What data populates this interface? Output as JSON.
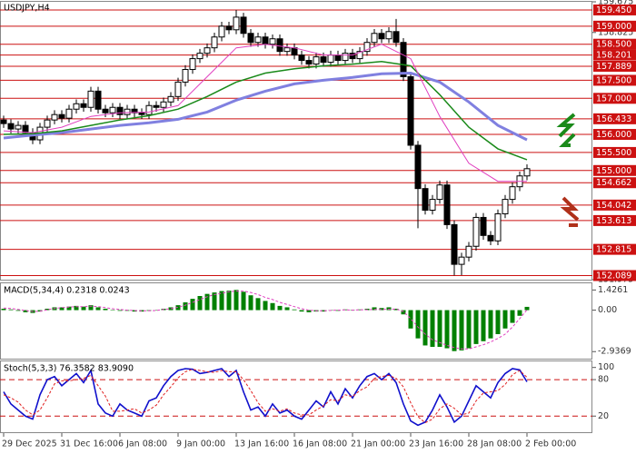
{
  "chart_data": [
    {
      "type": "candlestick",
      "title": "USDJPY,H4",
      "categories": [
        "29 Dec 2025",
        null,
        null,
        null,
        null,
        null,
        null,
        null,
        "31 Dec 16:00",
        null,
        null,
        null,
        null,
        null,
        null,
        null,
        "6 Jan 08:00",
        null,
        null,
        null,
        null,
        null,
        null,
        null,
        "9 Jan 00:00",
        null,
        null,
        null,
        null,
        null,
        null,
        null,
        "13 Jan 16:00",
        null,
        null,
        null,
        null,
        null,
        null,
        null,
        "16 Jan 08:00",
        null,
        null,
        null,
        null,
        null,
        null,
        null,
        "21 Jan 00:00",
        null,
        null,
        null,
        null,
        null,
        null,
        null,
        "23 Jan 16:00",
        null,
        null,
        null,
        null,
        null,
        null,
        null,
        "28 Jan 08:00",
        null,
        null,
        null,
        null,
        null,
        null,
        null,
        "2 Feb 00:00"
      ],
      "open": [
        156.4,
        156.3,
        156.15,
        156.25,
        156.05,
        155.85,
        156.2,
        156.4,
        156.55,
        156.45,
        156.7,
        156.85,
        156.75,
        157.2,
        156.7,
        156.6,
        156.75,
        156.55,
        156.7,
        156.6,
        156.55,
        156.8,
        156.75,
        156.9,
        157.05,
        157.45,
        157.8,
        158.1,
        158.25,
        158.4,
        158.7,
        159.0,
        158.9,
        159.25,
        158.8,
        158.55,
        158.7,
        158.5,
        158.65,
        158.3,
        158.4,
        158.2,
        158.05,
        157.95,
        158.15,
        158.0,
        158.2,
        158.05,
        158.25,
        158.1,
        158.3,
        158.55,
        158.8,
        158.65,
        158.85,
        158.55,
        157.6,
        155.7,
        154.5,
        153.9,
        154.2,
        154.6,
        153.5,
        152.4,
        152.6,
        152.9,
        153.7,
        153.2,
        153.05,
        153.8,
        154.2,
        154.55,
        154.85
      ],
      "high": [
        156.52,
        156.42,
        156.37,
        156.37,
        156.17,
        156.32,
        156.52,
        156.67,
        156.67,
        156.82,
        156.97,
        156.97,
        157.32,
        157.32,
        156.82,
        156.87,
        156.87,
        156.82,
        156.82,
        156.72,
        156.92,
        156.92,
        157.02,
        157.17,
        157.57,
        157.92,
        158.22,
        158.37,
        158.52,
        158.82,
        159.12,
        159.12,
        159.45,
        159.37,
        158.92,
        158.82,
        158.82,
        158.77,
        158.77,
        158.52,
        158.52,
        158.32,
        158.17,
        158.27,
        158.27,
        158.32,
        158.32,
        158.37,
        158.37,
        158.42,
        158.67,
        158.92,
        158.92,
        158.97,
        159.2,
        158.67,
        157.72,
        155.82,
        154.62,
        154.32,
        154.72,
        154.72,
        153.62,
        152.72,
        153.02,
        153.82,
        153.82,
        153.32,
        153.92,
        154.32,
        154.67,
        154.97,
        155.17
      ],
      "low": [
        156.18,
        156.03,
        156.03,
        155.93,
        155.73,
        155.73,
        156.08,
        156.28,
        156.33,
        156.33,
        156.58,
        156.63,
        156.63,
        156.58,
        156.48,
        156.48,
        156.43,
        156.43,
        156.48,
        156.43,
        156.43,
        156.63,
        156.63,
        156.78,
        156.93,
        157.33,
        157.68,
        157.98,
        158.13,
        158.28,
        158.58,
        158.78,
        158.78,
        158.68,
        158.43,
        158.43,
        158.38,
        158.38,
        158.18,
        158.18,
        158.08,
        157.93,
        157.83,
        157.83,
        157.88,
        157.88,
        157.93,
        157.93,
        157.98,
        157.98,
        158.18,
        158.43,
        158.53,
        158.53,
        158.43,
        157.48,
        155.58,
        153.4,
        153.78,
        153.78,
        154.08,
        153.38,
        152.09,
        152.1,
        152.48,
        152.78,
        153.08,
        152.93,
        152.93,
        153.68,
        154.08,
        154.43,
        154.73
      ],
      "close": [
        156.3,
        156.15,
        156.25,
        156.05,
        155.85,
        156.2,
        156.4,
        156.55,
        156.45,
        156.7,
        156.85,
        156.75,
        157.2,
        156.7,
        156.6,
        156.75,
        156.55,
        156.7,
        156.6,
        156.55,
        156.8,
        156.75,
        156.9,
        157.05,
        157.45,
        157.8,
        158.1,
        158.25,
        158.4,
        158.7,
        159.0,
        158.9,
        159.25,
        158.8,
        158.55,
        158.7,
        158.5,
        158.65,
        158.3,
        158.4,
        158.2,
        158.05,
        157.95,
        158.15,
        158.0,
        158.2,
        158.05,
        158.25,
        158.1,
        158.3,
        158.55,
        158.8,
        158.65,
        158.85,
        158.55,
        157.6,
        155.7,
        154.5,
        153.9,
        154.2,
        154.6,
        153.5,
        152.4,
        152.6,
        152.9,
        153.7,
        153.2,
        153.05,
        153.8,
        154.2,
        154.55,
        154.85,
        155.05
      ],
      "up_color": "#ffffff",
      "down_color": "#000000",
      "wick_color": "#000000",
      "series": [
        {
          "color": "#8080e0",
          "width": 3,
          "x": [
            0,
            4,
            8,
            12,
            16,
            20,
            24,
            28,
            32,
            36,
            40,
            44,
            48,
            52,
            56,
            60,
            64,
            68,
            72
          ],
          "values": [
            155.9,
            155.98,
            156.05,
            156.15,
            156.25,
            156.32,
            156.42,
            156.62,
            156.95,
            157.2,
            157.4,
            157.5,
            157.58,
            157.68,
            157.7,
            157.45,
            156.9,
            156.25,
            155.85
          ]
        },
        {
          "color": "#1a8a1a",
          "width": 1.5,
          "x": [
            0,
            4,
            8,
            12,
            16,
            20,
            24,
            28,
            32,
            36,
            40,
            44,
            48,
            52,
            56,
            60,
            64,
            68,
            72
          ],
          "values": [
            156.0,
            156.02,
            156.1,
            156.25,
            156.4,
            156.52,
            156.7,
            157.05,
            157.45,
            157.7,
            157.82,
            157.9,
            157.95,
            158.02,
            157.9,
            157.1,
            156.2,
            155.6,
            155.3
          ]
        },
        {
          "color": "#e040c0",
          "width": 1,
          "x": [
            0,
            4,
            8,
            12,
            16,
            20,
            24,
            28,
            32,
            36,
            40,
            44,
            48,
            52,
            56,
            60,
            64,
            68,
            72
          ],
          "values": [
            156.1,
            156.05,
            156.2,
            156.5,
            156.6,
            156.62,
            156.8,
            157.6,
            158.4,
            158.5,
            158.4,
            158.2,
            158.2,
            158.5,
            158.1,
            156.5,
            155.2,
            154.7,
            154.7
          ]
        }
      ],
      "ylim": [
        151.975,
        159.675
      ],
      "yticks": [
        159.675,
        158.825,
        151.975
      ],
      "levels": [
        {
          "value": 159.45,
          "label": "159.450"
        },
        {
          "value": 159,
          "label": "159.000"
        },
        {
          "value": 158.5,
          "label": "158.500"
        },
        158.201,
        157.889,
        {
          "value": 157.5,
          "label": "157.500"
        },
        {
          "value": 157,
          "label": "157.000"
        },
        156.433,
        {
          "value": 156,
          "label": "156.000"
        },
        {
          "value": 155.5,
          "label": "155.500"
        },
        {
          "value": 155,
          "label": "155.000"
        },
        154.662,
        154.042,
        153.613,
        152.815,
        152.089
      ],
      "level_color": "#cc1111"
    },
    {
      "type": "macd",
      "title": "MACD(5,34,4) 0.2318 0.0243",
      "values": [
        0.1,
        0.05,
        -0.05,
        -0.15,
        -0.2,
        -0.1,
        0.1,
        0.2,
        0.2,
        0.25,
        0.3,
        0.25,
        0.35,
        0.2,
        0.1,
        0.0,
        -0.05,
        -0.05,
        -0.1,
        -0.1,
        -0.05,
        0.0,
        0.1,
        0.2,
        0.35,
        0.55,
        0.8,
        1.0,
        1.15,
        1.25,
        1.35,
        1.38,
        1.43,
        1.3,
        1.05,
        0.85,
        0.65,
        0.5,
        0.3,
        0.2,
        0.05,
        -0.1,
        -0.15,
        -0.1,
        -0.1,
        0.0,
        -0.05,
        0.05,
        0.0,
        0.05,
        0.1,
        0.2,
        0.15,
        0.2,
        0.1,
        -0.3,
        -1.3,
        -2.0,
        -2.5,
        -2.6,
        -2.6,
        -2.7,
        -2.9,
        -2.85,
        -2.7,
        -2.4,
        -2.2,
        -2.0,
        -1.7,
        -1.3,
        -0.9,
        -0.4,
        0.2318
      ],
      "signal": [
        0.15,
        0.12,
        0.05,
        -0.03,
        -0.1,
        -0.08,
        0.02,
        0.12,
        0.18,
        0.22,
        0.25,
        0.25,
        0.28,
        0.25,
        0.18,
        0.1,
        0.05,
        0.0,
        -0.03,
        -0.05,
        -0.05,
        -0.02,
        0.05,
        0.1,
        0.2,
        0.35,
        0.55,
        0.75,
        0.95,
        1.1,
        1.2,
        1.3,
        1.35,
        1.35,
        1.25,
        1.1,
        0.9,
        0.75,
        0.55,
        0.4,
        0.25,
        0.1,
        0.0,
        -0.05,
        -0.05,
        -0.02,
        0.0,
        0.02,
        0.0,
        0.02,
        0.03,
        0.05,
        0.05,
        0.06,
        0.08,
        -0.1,
        -0.6,
        -1.2,
        -1.7,
        -2.1,
        -2.3,
        -2.5,
        -2.65,
        -2.75,
        -2.75,
        -2.6,
        -2.45,
        -2.25,
        -2.0,
        -1.7,
        -1.2,
        -0.6,
        0.0243
      ],
      "color": "#008000",
      "signal_color": "#e040c0",
      "ylim": [
        -3.5,
        1.9
      ],
      "yticks": [
        1.4261,
        {
          "value": 0,
          "label": "0.00"
        },
        -2.9369
      ]
    },
    {
      "type": "stochastic",
      "title": "Stoch(5,3,3) 76.3582 83.9090",
      "series": [
        {
          "color": "#1010cc",
          "dashed": false,
          "values": [
            60,
            40,
            30,
            20,
            15,
            55,
            80,
            85,
            70,
            80,
            90,
            75,
            95,
            40,
            25,
            20,
            40,
            30,
            25,
            20,
            45,
            50,
            70,
            85,
            95,
            98,
            97,
            90,
            92,
            95,
            98,
            85,
            95,
            60,
            30,
            35,
            20,
            40,
            25,
            30,
            20,
            15,
            30,
            45,
            35,
            60,
            40,
            65,
            50,
            70,
            85,
            90,
            80,
            90,
            75,
            40,
            12,
            5,
            10,
            30,
            55,
            35,
            10,
            20,
            45,
            70,
            60,
            50,
            75,
            90,
            98,
            96,
            76.3582
          ]
        },
        {
          "color": "#e02020",
          "dashed": true,
          "values": [
            55,
            50,
            43,
            30,
            22,
            30,
            50,
            73,
            78,
            78,
            80,
            82,
            87,
            70,
            53,
            28,
            28,
            30,
            32,
            25,
            30,
            38,
            55,
            68,
            83,
            93,
            97,
            95,
            93,
            92,
            95,
            93,
            93,
            80,
            62,
            42,
            28,
            32,
            28,
            32,
            25,
            22,
            22,
            30,
            37,
            47,
            45,
            55,
            52,
            62,
            68,
            82,
            85,
            87,
            82,
            68,
            42,
            19,
            9,
            15,
            32,
            40,
            33,
            22,
            25,
            45,
            58,
            60,
            62,
            72,
            88,
            95,
            83.909
          ]
        }
      ],
      "ylim": [
        -8,
        110
      ],
      "yticks": [
        100,
        80,
        20
      ],
      "levels": [
        80,
        20
      ],
      "level_color": "#cc1111"
    }
  ]
}
